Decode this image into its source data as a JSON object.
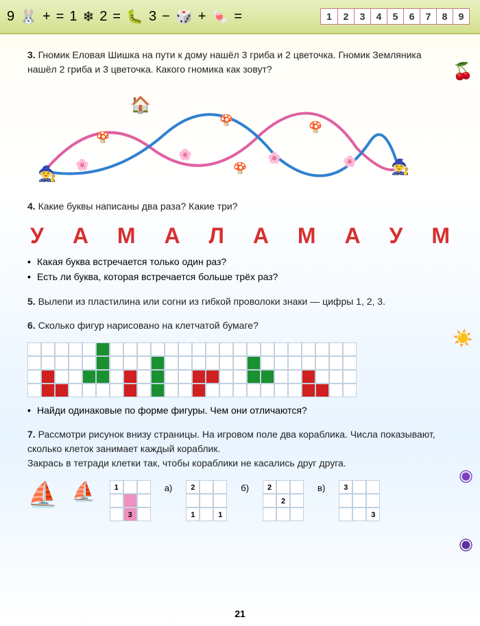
{
  "topbar": {
    "glyphs": [
      "9",
      "🐰",
      "+",
      "=",
      "1",
      "❄",
      "2",
      "=",
      "🐛",
      "3",
      "−",
      "🎲",
      "+",
      "🍬",
      "="
    ],
    "pages": [
      "1",
      "2",
      "3",
      "4",
      "5",
      "6",
      "7",
      "8",
      "9"
    ]
  },
  "tasks": {
    "t3": {
      "num": "3.",
      "text": "Гномик Еловая Шишка на пути к дому нашёл 3 гриба и 2 цветочка. Гномик Земляника нашёл 2 гриба и 3 цветочка. Какого гномика как зовут?"
    },
    "t4": {
      "num": "4.",
      "text": "Какие буквы написаны два раза? Какие три?"
    },
    "t4_letters": [
      "У",
      "А",
      "М",
      "А",
      "Л",
      "А",
      "М",
      "А",
      "У",
      "М"
    ],
    "t4_b1": "Какая буква встречается только один раз?",
    "t4_b2": "Есть ли буква, которая встречается больше трёх раз?",
    "t5": {
      "num": "5.",
      "text": "Вылепи из пластилина или согни из гибкой проволоки знаки — цифры 1, 2, 3."
    },
    "t6": {
      "num": "6.",
      "text": "Сколько фигур нарисовано на клетчатой бумаге?"
    },
    "t6_b1": "Найди одинаковые по форме фигуры. Чем они отличаются?",
    "t7": {
      "num": "7.",
      "text": "Рассмотри рисунок внизу страницы. На игровом поле два кораблика. Числа показывают, сколько клеток занимает каждый кораблик."
    },
    "t7_cont": "Закрась в тетради клетки так, чтобы кораблики не касались друг друга."
  },
  "grids": {
    "example_cells": [
      "1",
      "",
      "",
      "",
      "",
      "",
      "",
      "3",
      ""
    ],
    "pink_idx": [
      4,
      7
    ],
    "opt_a": {
      "label": "а)",
      "cells": [
        "2",
        "",
        "",
        "",
        "",
        "",
        "1",
        "",
        "1"
      ]
    },
    "opt_b": {
      "label": "б)",
      "cells": [
        "2",
        "",
        "",
        "",
        "2",
        "",
        "",
        "",
        ""
      ]
    },
    "opt_v": {
      "label": "в)",
      "cells": [
        "3",
        "",
        "",
        "",
        "",
        "",
        "",
        "",
        "3"
      ]
    }
  },
  "page_number": "21",
  "colors": {
    "green": "#1a9030",
    "red": "#d02020",
    "pink": "#f090c0",
    "letter": "#d63030"
  }
}
